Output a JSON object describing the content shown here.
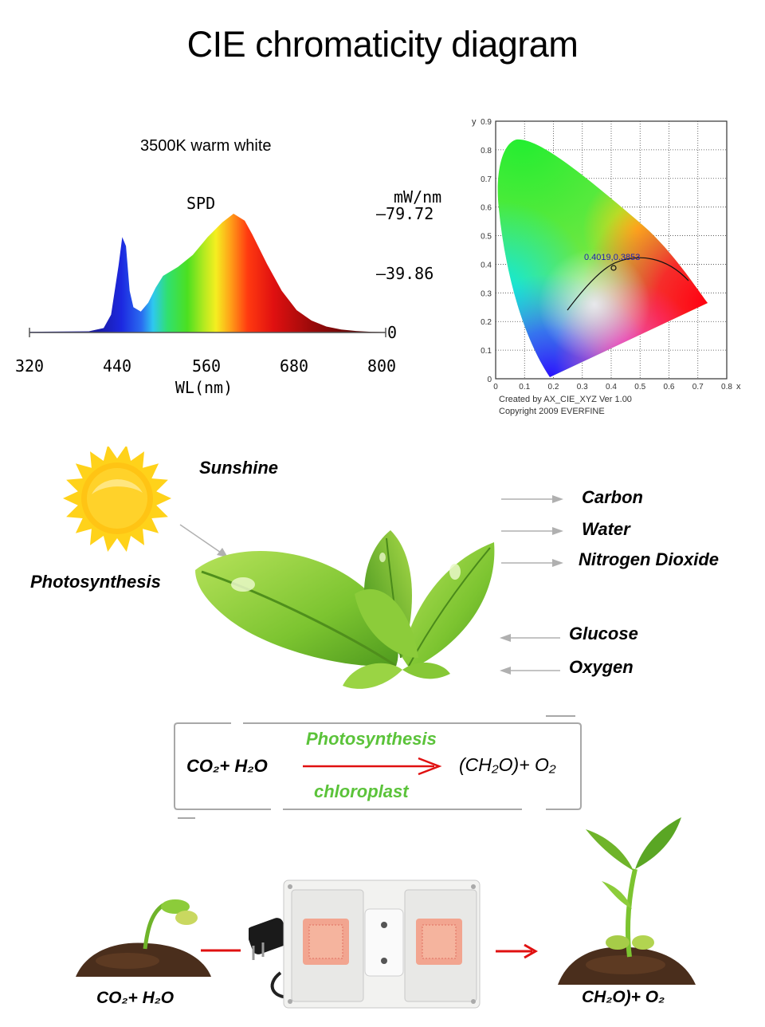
{
  "title": "CIE chromaticity diagram",
  "spd": {
    "subtitle": "3500K warm white",
    "label": "SPD",
    "unit": "mW/nm",
    "y_ticks": [
      "79.72",
      "39.86",
      "0"
    ],
    "x_ticks": [
      "320",
      "440",
      "560",
      "680",
      "800"
    ],
    "x_label": "WL(nm)"
  },
  "cie": {
    "y_axis": "y",
    "x_axis": "x",
    "y_ticks": [
      "0.9",
      "0.8",
      "0.7",
      "0.6",
      "0.5",
      "0.4",
      "0.3",
      "0.2",
      "0.1",
      "0"
    ],
    "x_ticks": [
      "0",
      "0.1",
      "0.2",
      "0.3",
      "0.4",
      "0.5",
      "0.6",
      "0.7",
      "0.8"
    ],
    "point_label": "0.4019,0.3853",
    "credit_1": "Created by AX_CIE_XYZ Ver 1.00",
    "credit_2": "Copyright 2009 EVERFINE"
  },
  "chart_data": {
    "type": "line",
    "title": "SPD",
    "subtitle": "3500K warm white",
    "xlabel": "WL(nm)",
    "ylabel": "mW/nm",
    "xlim": [
      320,
      800
    ],
    "ylim": [
      0,
      79.72
    ],
    "x": [
      320,
      400,
      420,
      430,
      440,
      445,
      450,
      455,
      460,
      470,
      480,
      490,
      500,
      520,
      540,
      560,
      580,
      595,
      610,
      620,
      640,
      660,
      680,
      700,
      720,
      740,
      760,
      780,
      800
    ],
    "y": [
      0.5,
      0.8,
      3,
      12,
      45,
      64,
      58,
      28,
      17,
      14,
      20,
      30,
      38,
      44,
      52,
      64,
      74,
      79.72,
      75,
      66,
      46,
      28,
      15,
      8,
      4,
      2,
      1,
      0.5,
      0.3
    ]
  },
  "photosynthesis": {
    "sunshine": "Sunshine",
    "photosynthesis": "Photosynthesis",
    "inputs": [
      "Carbon",
      "Water",
      "Nitrogen Dioxide"
    ],
    "outputs": [
      "Glucose",
      "Oxygen"
    ]
  },
  "equation": {
    "left": "CO₂+ H₂O",
    "above_arrow": "Photosynthesis",
    "below_arrow": "chloroplast",
    "right": "(CH₂O)+ O₂"
  },
  "bottom": {
    "left": "CO₂+ H₂O",
    "right": "CH₂O)+ O₂"
  },
  "colors": {
    "arrow_red": "#e01010",
    "label_green": "#5bc33a",
    "arrow_gray": "#b0b0b0"
  }
}
